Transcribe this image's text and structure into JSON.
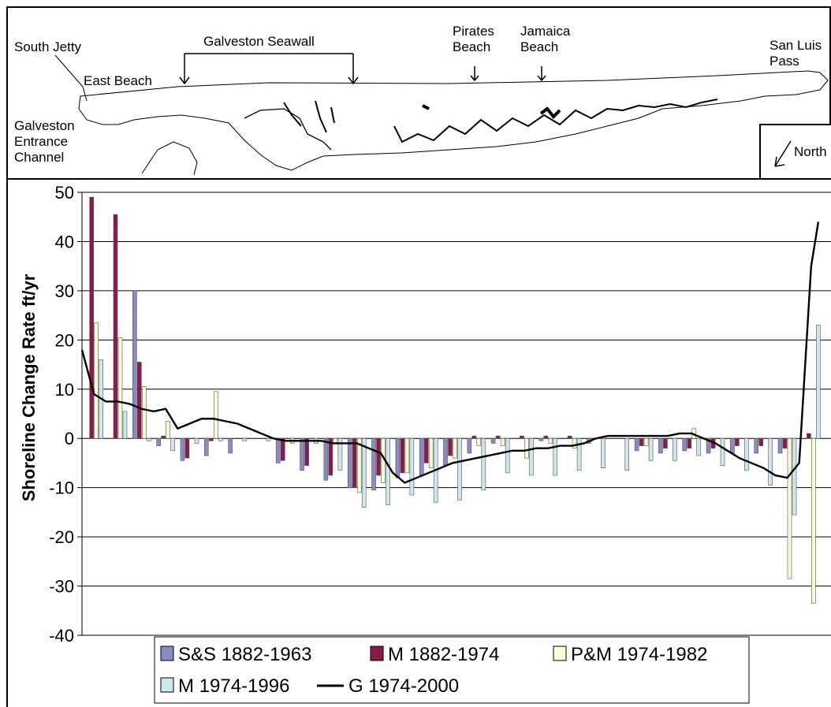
{
  "map": {
    "south_jetty": "South Jetty",
    "galveston_seawall": "Galveston Seawall",
    "east_beach": "East Beach",
    "pirates_beach": "Pirates\nBeach",
    "jamaica_beach": "Jamaica\nBeach",
    "san_luis_pass": "San Luis\nPass",
    "entrance_channel": "Galveston\nEntrance\nChannel",
    "north": "North"
  },
  "colors": {
    "ss": "#8b8bc4",
    "m1882": "#8b1a4a",
    "pm": "#fdfbd4",
    "m1974": "#cce8ee",
    "g": "#000000"
  },
  "chart_data": {
    "type": "bar",
    "xlabel": "",
    "ylabel": "Shoreline Change Rate ft/yr",
    "ylim": [
      -40,
      50
    ],
    "yticks": [
      -40,
      -30,
      -20,
      -10,
      0,
      10,
      20,
      30,
      40,
      50
    ],
    "grid": true,
    "legend_placement": "bottom",
    "groups": 31,
    "series": [
      {
        "name": "S&S 1882-1963",
        "type": "bar",
        "values": [
          0,
          0,
          30,
          -1.5,
          -4.5,
          -3.5,
          -3,
          0,
          -5,
          -6.5,
          -8.5,
          -10,
          -10.5,
          -8,
          -7.5,
          -5.5,
          -3,
          -1,
          0,
          -0.5,
          0,
          -1,
          0,
          -2.5,
          -3,
          -2.5,
          -3,
          -3,
          -3,
          -3,
          0
        ]
      },
      {
        "name": "M 1882-1974",
        "type": "bar",
        "values": [
          49,
          45.5,
          15.5,
          0.5,
          -4,
          -0.5,
          0,
          0,
          -4.5,
          -5.5,
          -7.5,
          -10,
          -7.5,
          -7,
          -5,
          -3.5,
          0.5,
          0.5,
          0.5,
          0.5,
          0.5,
          0,
          0,
          -1.5,
          -2,
          -2,
          -2,
          -1.5,
          -1.5,
          -2,
          1
        ]
      },
      {
        "name": "P&M 1974-1982",
        "type": "bar",
        "values": [
          23.5,
          20.5,
          10.5,
          3.5,
          0,
          9.5,
          0,
          0,
          0,
          0,
          -1,
          -11,
          -9,
          -7,
          -6,
          -4,
          -1.5,
          -1.5,
          -4,
          -1,
          -2,
          0,
          0,
          -1.5,
          0,
          2,
          0,
          0,
          0,
          -28.5,
          -33.5
        ]
      },
      {
        "name": "M  1974-1996",
        "type": "bar",
        "values": [
          16,
          5.5,
          -0.5,
          -2.5,
          -1,
          -0.5,
          -0.5,
          -0.5,
          -1,
          -1,
          -6.5,
          -14,
          -13.5,
          -11.5,
          -13,
          -12.5,
          -10.5,
          -7,
          -7.5,
          -7.5,
          -6.5,
          -6,
          -6.5,
          -4.5,
          -4.5,
          -3.5,
          -5.5,
          -6.5,
          -9.5,
          -15.5,
          23
        ]
      },
      {
        "name": "G 1974-2000",
        "type": "line",
        "x": [
          0,
          0.5,
          1,
          1.5,
          2,
          2.5,
          3,
          3.5,
          4,
          4.5,
          5,
          5.5,
          6,
          6.5,
          7,
          7.5,
          8,
          8.5,
          9,
          9.5,
          10,
          10.5,
          11,
          11.5,
          12,
          12.5,
          13,
          13.5,
          14,
          14.5,
          15,
          15.5,
          16,
          16.5,
          17,
          17.5,
          18,
          18.5,
          19,
          19.5,
          20,
          20.5,
          21,
          21.5,
          22,
          22.5,
          23,
          23.5,
          24,
          24.5,
          25,
          25.5,
          26,
          26.5,
          27,
          27.5,
          28,
          28.5,
          29,
          29.5,
          30,
          30.5,
          30.8
        ],
        "values": [
          18,
          9,
          7.5,
          7.5,
          7,
          6,
          5.5,
          6,
          2,
          3,
          4,
          4,
          3.5,
          3,
          2,
          1,
          0,
          -0.5,
          -0.5,
          -0.5,
          -0.5,
          -1,
          -1,
          -1,
          -2,
          -3,
          -7,
          -9,
          -8,
          -7,
          -6,
          -5,
          -4.5,
          -4,
          -3.5,
          -3,
          -2.5,
          -2.5,
          -2,
          -2,
          -1.5,
          -1.5,
          -1,
          0,
          0.5,
          0.5,
          0.5,
          0.5,
          0.5,
          0.5,
          1,
          1,
          0,
          -1,
          -2.5,
          -4,
          -5,
          -6,
          -7.5,
          -8,
          -5,
          35,
          44
        ]
      }
    ]
  }
}
